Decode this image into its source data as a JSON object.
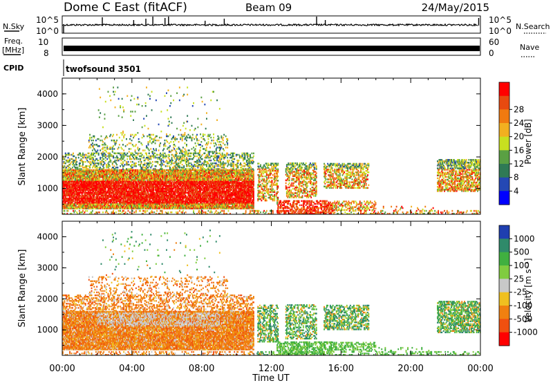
{
  "header": {
    "title": "Dome C East (fitACF)",
    "beam": "Beam 09",
    "date": "24/May/2015"
  },
  "top_panels": {
    "nsky_label": "N.Sky",
    "nsky_ticks": [
      "10^5",
      "10^0"
    ],
    "nsky_right_ticks": [
      "10^5",
      "10^0"
    ],
    "nsearch_label": "N.Search",
    "freq_label": "Freq.",
    "freq_unit": "[MHz]",
    "freq_ticks": [
      "10",
      "8"
    ],
    "nave_ticks": [
      "60",
      "0"
    ],
    "nave_label": "Nave",
    "cpid_label": "CPID",
    "cpid_value": "twofsound 3501"
  },
  "chart_data": [
    {
      "type": "heatmap",
      "name": "power-panel",
      "ylabel": "Slant Range [km]",
      "yticks": [
        1000,
        2000,
        3000,
        4000
      ],
      "ylim": [
        180,
        4500
      ],
      "xlim": [
        0,
        24
      ],
      "colorbar": {
        "label": "Power [dB]",
        "ticks": [
          "4",
          "8",
          "12",
          "16",
          "20",
          "24",
          "28"
        ],
        "colors": [
          "#0000ff",
          "#2448b4",
          "#2f7a55",
          "#5aa043",
          "#c8e020",
          "#f2b020",
          "#f07a10",
          "#e84a10",
          "#ff0000"
        ]
      }
    },
    {
      "type": "heatmap",
      "name": "velocity-panel",
      "ylabel": "Slant Range [km]",
      "yticks": [
        1000,
        2000,
        3000,
        4000
      ],
      "ylim": [
        180,
        4500
      ],
      "xlim": [
        0,
        24
      ],
      "xticks": [
        "00:00",
        "04:00",
        "08:00",
        "12:00",
        "16:00",
        "20:00",
        "00:00"
      ],
      "xlabel": "Time UT",
      "colorbar": {
        "label": "Velocity [m s⁻¹]",
        "ticks": [
          "1000",
          "500",
          "100",
          "25",
          "-25",
          "-100",
          "-500",
          "-1000"
        ],
        "colors": [
          "#1f3fb0",
          "#2f8a6a",
          "#40b040",
          "#80cc40",
          "#c8c8c8",
          "#f0c020",
          "#f08010",
          "#f05010",
          "#ff0000"
        ]
      }
    }
  ]
}
